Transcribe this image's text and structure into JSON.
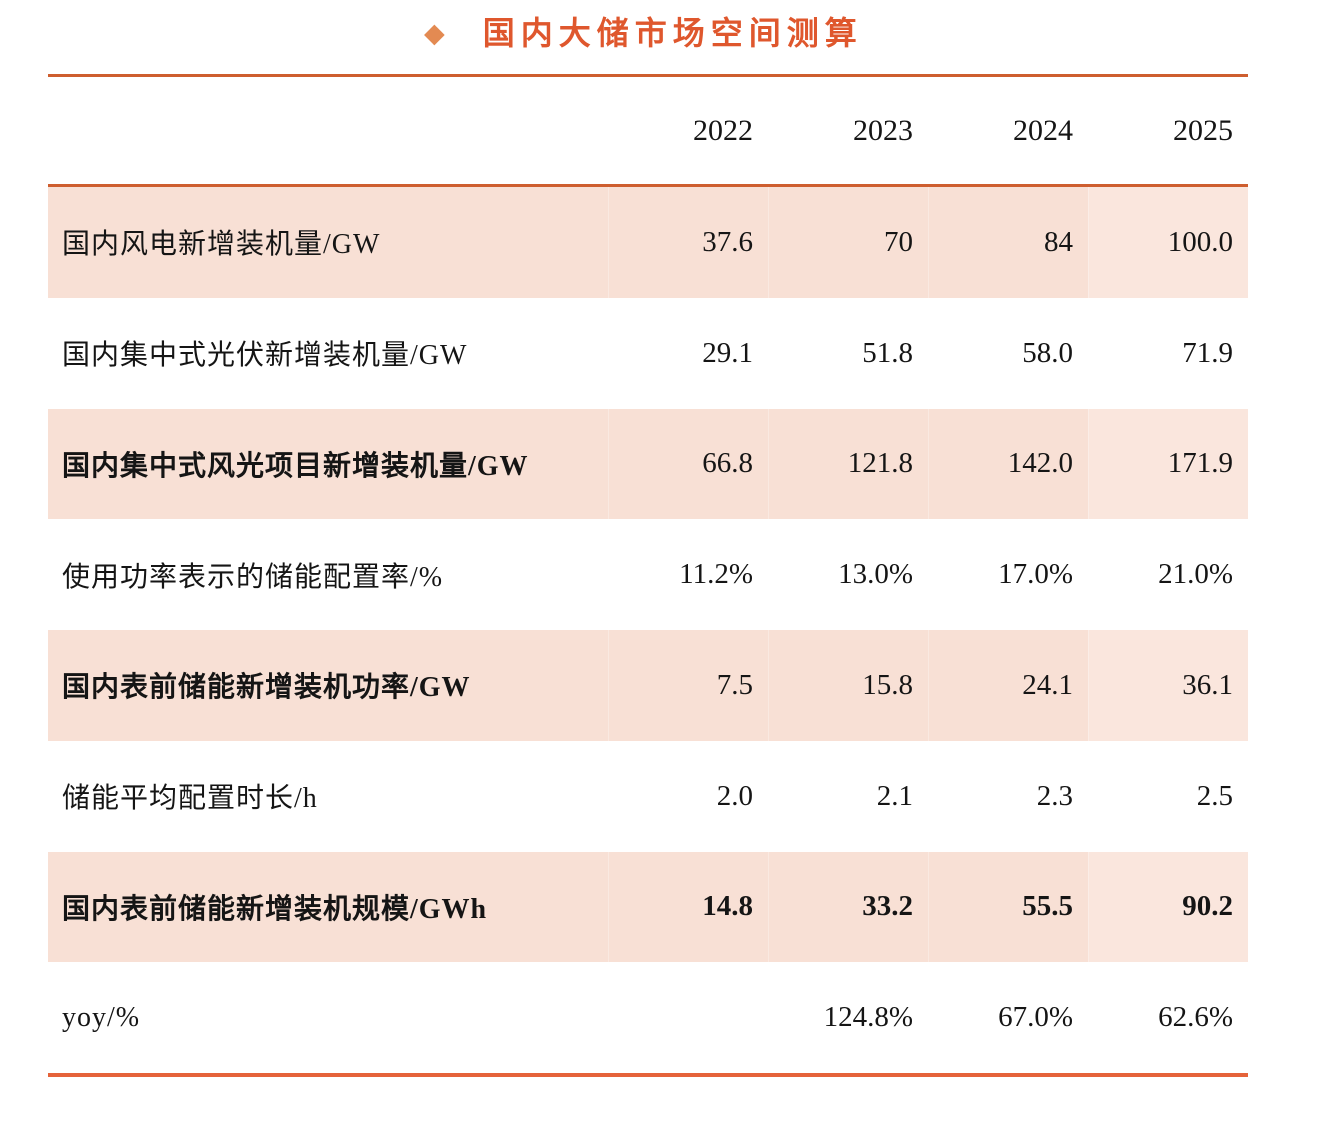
{
  "title": {
    "bullet_glyph": "◆",
    "text": "国内大储市场空间测算"
  },
  "colors": {
    "title_text": "#df572d",
    "bullet": "#e38a52",
    "rule_orange": "#ce5e2f",
    "bottom_rule_orange": "#e5633a",
    "shaded_row_bg": "#f8e0d5"
  },
  "table": {
    "columns": [
      "2022",
      "2023",
      "2024",
      "2025"
    ],
    "rows": [
      {
        "label": "国内风电新增装机量/GW",
        "values": [
          "37.6",
          "70",
          "84",
          "100.0"
        ]
      },
      {
        "label": "国内集中式光伏新增装机量/GW",
        "values": [
          "29.1",
          "51.8",
          "58.0",
          "71.9"
        ]
      },
      {
        "label": "国内集中式风光项目新增装机量/GW",
        "values": [
          "66.8",
          "121.8",
          "142.0",
          "171.9"
        ]
      },
      {
        "label": "使用功率表示的储能配置率/%",
        "values": [
          "11.2%",
          "13.0%",
          "17.0%",
          "21.0%"
        ]
      },
      {
        "label": "国内表前储能新增装机功率/GW",
        "values": [
          "7.5",
          "15.8",
          "24.1",
          "36.1"
        ]
      },
      {
        "label": "储能平均配置时长/h",
        "values": [
          "2.0",
          "2.1",
          "2.3",
          "2.5"
        ]
      },
      {
        "label": "国内表前储能新增装机规模/GWh",
        "values": [
          "14.8",
          "33.2",
          "55.5",
          "90.2"
        ]
      },
      {
        "label": "yoy/%",
        "values": [
          "",
          "124.8%",
          "67.0%",
          "62.6%"
        ]
      }
    ]
  }
}
